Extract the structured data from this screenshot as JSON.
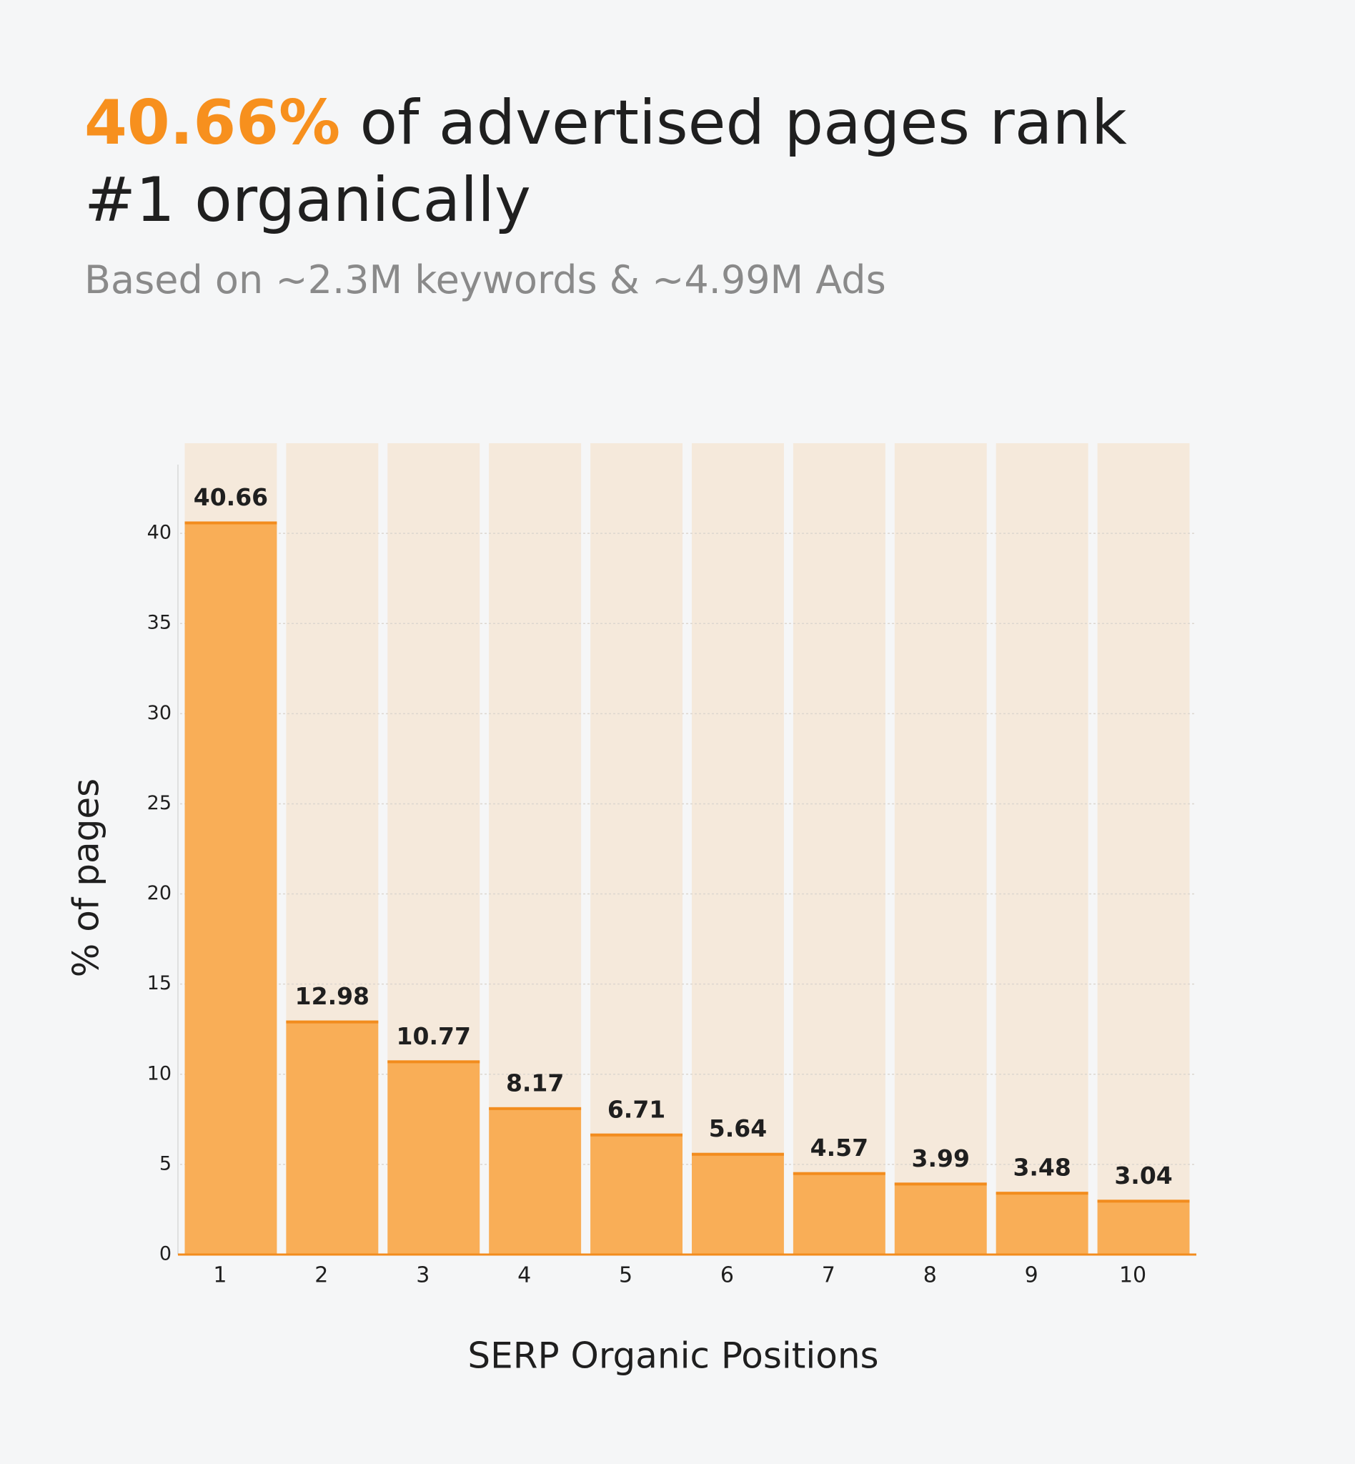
{
  "chart_data": {
    "type": "bar",
    "title_highlight": "40.66%",
    "title": "of advertised pages rank #1 organically",
    "subtitle": "Based on ~2.3M keywords & ~4.99M Ads",
    "x_label": "SERP Organic Positions",
    "y_label": "% of pages",
    "categories": [
      "1",
      "2",
      "3",
      "4",
      "5",
      "6",
      "7",
      "8",
      "9",
      "10"
    ],
    "values": [
      40.66,
      12.98,
      10.77,
      8.17,
      6.71,
      5.64,
      4.57,
      3.99,
      3.48,
      3.04
    ],
    "color": "#f9ae57",
    "edge_color": "#f28c1e",
    "background_color": "#f5e9db",
    "ylim": [
      0,
      45
    ],
    "yticks": [
      0,
      5,
      10,
      15,
      20,
      25,
      30,
      35,
      40
    ],
    "grid": true
  }
}
